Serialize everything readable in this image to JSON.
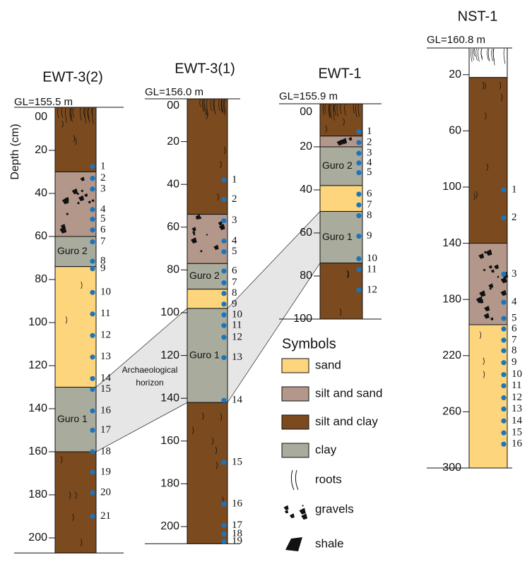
{
  "depth_label": "Depth (cm)",
  "horizon": {
    "lines": [
      "Archaeological",
      "horizon"
    ]
  },
  "columns": [
    {
      "title": "EWT-3(2)",
      "gl": "GL=155.5 m",
      "ticks": [
        {
          "value": 0,
          "label": "00"
        },
        {
          "value": 20,
          "label": "20"
        },
        {
          "value": 40,
          "label": "40"
        },
        {
          "value": 60,
          "label": "60"
        },
        {
          "value": 80,
          "label": "80"
        },
        {
          "value": 100,
          "label": "100"
        },
        {
          "value": 120,
          "label": "120"
        },
        {
          "value": 140,
          "label": "140"
        },
        {
          "value": 160,
          "label": "160"
        },
        {
          "value": 180,
          "label": "180"
        },
        {
          "value": 200,
          "label": "200"
        }
      ],
      "layers": [
        {
          "from": 0,
          "to": 30,
          "color": "#7b4a1e"
        },
        {
          "from": 30,
          "to": 60,
          "color": "#b3978a"
        },
        {
          "from": 60,
          "to": 74,
          "color": "#a9ab9c",
          "label": "Guro 2"
        },
        {
          "from": 74,
          "to": 130,
          "color": "#fdd57c"
        },
        {
          "from": 130,
          "to": 160,
          "color": "#a9ab9c",
          "label": "Guro 1"
        },
        {
          "from": 160,
          "to": 207,
          "color": "#7b4a1e"
        }
      ],
      "samples": [
        {
          "depth": 27.5,
          "label": "1"
        },
        {
          "depth": 33,
          "label": "2"
        },
        {
          "depth": 38,
          "label": "3"
        },
        {
          "depth": 47.5,
          "label": "4"
        },
        {
          "depth": 52,
          "label": "5"
        },
        {
          "depth": 57,
          "label": "6"
        },
        {
          "depth": 62.5,
          "label": "7"
        },
        {
          "depth": 71.5,
          "label": "8"
        },
        {
          "depth": 75,
          "label": "9"
        },
        {
          "depth": 86,
          "label": "10"
        },
        {
          "depth": 96,
          "label": "11"
        },
        {
          "depth": 106,
          "label": "12"
        },
        {
          "depth": 116,
          "label": "13"
        },
        {
          "depth": 126,
          "label": "14"
        },
        {
          "depth": 131,
          "label": "15"
        },
        {
          "depth": 141,
          "label": "16"
        },
        {
          "depth": 150,
          "label": "17"
        },
        {
          "depth": 160,
          "label": "18"
        },
        {
          "depth": 169.5,
          "label": "19"
        },
        {
          "depth": 179,
          "label": "20"
        },
        {
          "depth": 190,
          "label": "21"
        }
      ]
    },
    {
      "title": "EWT-3(1)",
      "gl": "GL=156.0 m",
      "ticks": [
        {
          "value": 0,
          "label": "00"
        },
        {
          "value": 20,
          "label": "20"
        },
        {
          "value": 40,
          "label": "40"
        },
        {
          "value": 60,
          "label": "60"
        },
        {
          "value": 80,
          "label": "80"
        },
        {
          "value": 100,
          "label": "100"
        },
        {
          "value": 120,
          "label": "120"
        },
        {
          "value": 140,
          "label": "140"
        },
        {
          "value": 160,
          "label": "160"
        },
        {
          "value": 180,
          "label": "180"
        },
        {
          "value": 200,
          "label": "200"
        }
      ],
      "layers": [
        {
          "from": 0,
          "to": 54,
          "color": "#7b4a1e"
        },
        {
          "from": 54,
          "to": 77,
          "color": "#b3978a"
        },
        {
          "from": 77,
          "to": 89,
          "color": "#a9ab9c",
          "label": "Guro 2"
        },
        {
          "from": 89,
          "to": 98,
          "color": "#fdd57c"
        },
        {
          "from": 98,
          "to": 142,
          "color": "#a9ab9c",
          "label": "Guro 1"
        },
        {
          "from": 142,
          "to": 208,
          "color": "#7b4a1e"
        }
      ],
      "samples": [
        {
          "depth": 38,
          "label": "1"
        },
        {
          "depth": 47,
          "label": "2"
        },
        {
          "depth": 57,
          "label": "3"
        },
        {
          "depth": 66.5,
          "label": "4"
        },
        {
          "depth": 71.5,
          "label": "5"
        },
        {
          "depth": 80.5,
          "label": "6"
        },
        {
          "depth": 86,
          "label": "7"
        },
        {
          "depth": 91,
          "label": "8"
        },
        {
          "depth": 96,
          "label": "9"
        },
        {
          "depth": 101,
          "label": "10"
        },
        {
          "depth": 106,
          "label": "11"
        },
        {
          "depth": 111.5,
          "label": "12"
        },
        {
          "depth": 121,
          "label": "13"
        },
        {
          "depth": 141,
          "label": "14"
        },
        {
          "depth": 170,
          "label": "15"
        },
        {
          "depth": 189.5,
          "label": "16"
        },
        {
          "depth": 199.5,
          "label": "17"
        },
        {
          "depth": 203.5,
          "label": "18"
        },
        {
          "depth": 207,
          "label": "19"
        }
      ]
    },
    {
      "title": "EWT-1",
      "gl": "GL=155.9 m",
      "ticks": [
        {
          "value": 0,
          "label": "00"
        },
        {
          "value": 20,
          "label": "20"
        },
        {
          "value": 40,
          "label": "40"
        },
        {
          "value": 60,
          "label": "60"
        },
        {
          "value": 80,
          "label": "80"
        },
        {
          "value": 100,
          "label": "100"
        }
      ],
      "layers": [
        {
          "from": 0,
          "to": 15,
          "color": "#7b4a1e"
        },
        {
          "from": 15,
          "to": 20,
          "color": "#b3978a"
        },
        {
          "from": 20,
          "to": 38,
          "color": "#a9ab9c",
          "label": "Guro 2"
        },
        {
          "from": 38,
          "to": 50,
          "color": "#fdd57c"
        },
        {
          "from": 50,
          "to": 74,
          "color": "#a9ab9c",
          "label": "Guro 1"
        },
        {
          "from": 74,
          "to": 100,
          "color": "#7b4a1e"
        }
      ],
      "samples": [
        {
          "depth": 13,
          "label": "1"
        },
        {
          "depth": 18,
          "label": "2"
        },
        {
          "depth": 23,
          "label": "3"
        },
        {
          "depth": 27.5,
          "label": "4"
        },
        {
          "depth": 32,
          "label": "5"
        },
        {
          "depth": 42,
          "label": "6"
        },
        {
          "depth": 47,
          "label": "7"
        },
        {
          "depth": 52,
          "label": "8"
        },
        {
          "depth": 61.5,
          "label": "9"
        },
        {
          "depth": 72,
          "label": "10"
        },
        {
          "depth": 77,
          "label": "11"
        },
        {
          "depth": 86.5,
          "label": "12"
        }
      ]
    },
    {
      "title": "NST-1",
      "gl": "GL=160.8 m",
      "ticks": [
        {
          "value": 20,
          "label": "20"
        },
        {
          "value": 60,
          "label": "60"
        },
        {
          "value": 100,
          "label": "100"
        },
        {
          "value": 140,
          "label": "140"
        },
        {
          "value": 180,
          "label": "180"
        },
        {
          "value": 220,
          "label": "220"
        },
        {
          "value": 260,
          "label": "260"
        },
        {
          "value": 300,
          "label": "300"
        }
      ],
      "layers": [
        {
          "from": 1,
          "to": 22,
          "color": "#ffffff"
        },
        {
          "from": 22,
          "to": 140,
          "color": "#7b4a1e"
        },
        {
          "from": 140,
          "to": 198,
          "color": "#b3978a"
        },
        {
          "from": 198,
          "to": 300,
          "color": "#fdd57c"
        }
      ],
      "samples": [
        {
          "depth": 102,
          "label": "1"
        },
        {
          "depth": 122,
          "label": "2"
        },
        {
          "depth": 162,
          "label": "3"
        },
        {
          "depth": 182,
          "label": "4"
        },
        {
          "depth": 193.5,
          "label": "5"
        },
        {
          "depth": 201,
          "label": "6"
        },
        {
          "depth": 209,
          "label": "7"
        },
        {
          "depth": 216.5,
          "label": "8"
        },
        {
          "depth": 225,
          "label": "9"
        },
        {
          "depth": 233.5,
          "label": "10"
        },
        {
          "depth": 241.5,
          "label": "11"
        },
        {
          "depth": 250,
          "label": "12"
        },
        {
          "depth": 258,
          "label": "13"
        },
        {
          "depth": 266.5,
          "label": "14"
        },
        {
          "depth": 275,
          "label": "15"
        },
        {
          "depth": 283,
          "label": "16"
        }
      ]
    }
  ],
  "legend": {
    "title": "Symbols",
    "items": [
      {
        "label": "sand",
        "color": "#fdd57c"
      },
      {
        "label": "silt and sand",
        "color": "#b3978a"
      },
      {
        "label": "silt and clay",
        "color": "#7b4a1e"
      },
      {
        "label": "clay",
        "color": "#a9ab9c"
      },
      {
        "label": "roots"
      },
      {
        "label": "gravels"
      },
      {
        "label": "shale"
      }
    ]
  }
}
